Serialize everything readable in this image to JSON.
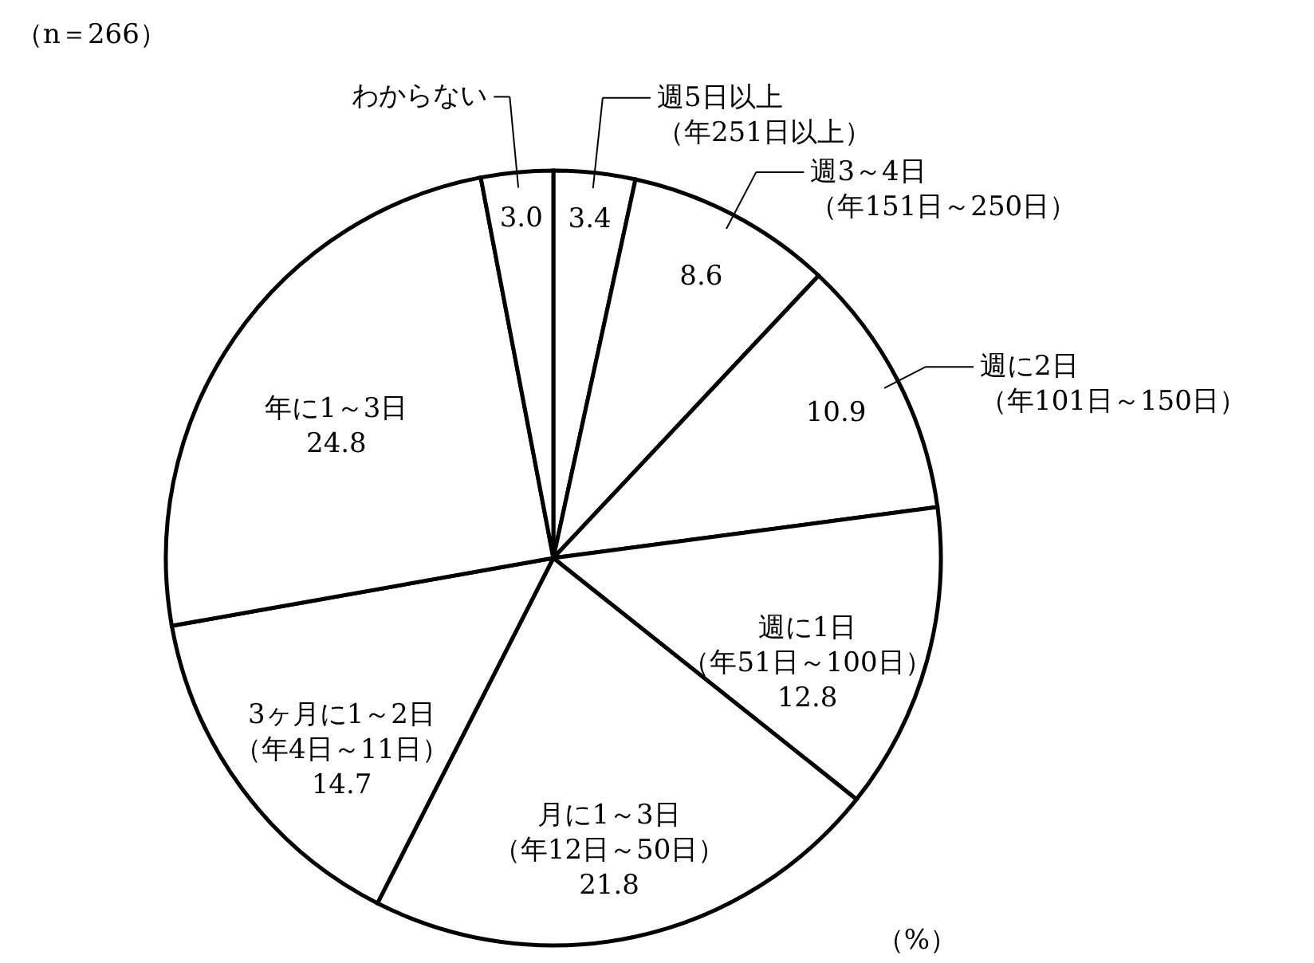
{
  "chart_data": {
    "type": "pie",
    "categories": [
      "週5日以上（年251日以上）",
      "週3～4日（年151日～250日）",
      "週に2日（年101日～150日）",
      "週に1日（年51日～100日）",
      "月に1～3日（年12日～50日）",
      "3ヶ月に1～2日（年4日～11日）",
      "年に1～3日",
      "わからない"
    ],
    "values": [
      3.4,
      8.6,
      10.9,
      12.8,
      21.8,
      14.7,
      24.8,
      3.0
    ],
    "value_labels": [
      "3.4",
      "8.6",
      "10.9",
      "12.8",
      "21.8",
      "14.7",
      "24.8",
      "3.0"
    ],
    "colors": [
      "#ffffff",
      "#ffffff",
      "#ffffff",
      "#ffffff",
      "#ffffff",
      "#ffffff",
      "#ffffff",
      "#ffffff"
    ],
    "legend": "top right",
    "annotations": [
      "（n＝266）",
      "（%）"
    ]
  }
}
